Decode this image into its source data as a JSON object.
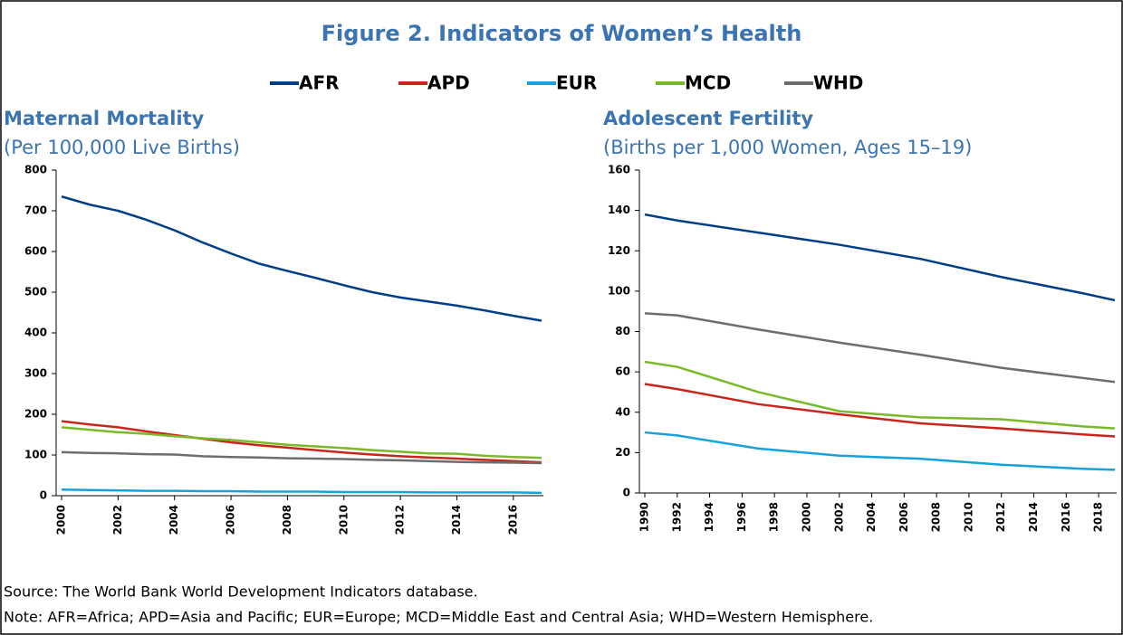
{
  "title": "Figure 2. Indicators of Women’s Health",
  "chart_data": [
    {
      "type": "line",
      "title": "Maternal Mortality",
      "subtitle": "(Per 100,000 Live Births)",
      "x": [
        2000,
        2001,
        2002,
        2003,
        2004,
        2005,
        2006,
        2007,
        2008,
        2009,
        2010,
        2011,
        2012,
        2013,
        2014,
        2015,
        2016,
        2017
      ],
      "xlim": [
        2000,
        2017
      ],
      "xticks": [
        2000,
        2002,
        2004,
        2006,
        2008,
        2010,
        2012,
        2014,
        2016
      ],
      "ylim": [
        0,
        800
      ],
      "yticks": [
        0,
        100,
        200,
        300,
        400,
        500,
        600,
        700,
        800
      ],
      "series": [
        {
          "name": "AFR",
          "color": "#003f87",
          "values": [
            735,
            715,
            700,
            678,
            652,
            622,
            595,
            570,
            552,
            535,
            517,
            500,
            487,
            477,
            467,
            455,
            442,
            430
          ]
        },
        {
          "name": "APD",
          "color": "#c8261c",
          "values": [
            183,
            175,
            168,
            158,
            149,
            140,
            131,
            124,
            118,
            112,
            106,
            101,
            97,
            94,
            91,
            88,
            85,
            82
          ]
        },
        {
          "name": "EUR",
          "color": "#17a2dc",
          "values": [
            15,
            14,
            13,
            12,
            12,
            11,
            11,
            10,
            10,
            10,
            9,
            9,
            9,
            8,
            8,
            8,
            8,
            7
          ]
        },
        {
          "name": "MCD",
          "color": "#7ab929",
          "values": [
            168,
            162,
            156,
            152,
            146,
            141,
            137,
            131,
            125,
            121,
            117,
            112,
            108,
            104,
            103,
            98,
            95,
            93
          ]
        },
        {
          "name": "WHD",
          "color": "#6d6d6d",
          "values": [
            107,
            105,
            104,
            102,
            101,
            97,
            95,
            94,
            92,
            91,
            90,
            88,
            87,
            85,
            83,
            82,
            81,
            80
          ]
        }
      ]
    },
    {
      "type": "line",
      "title": "Adolescent Fertility",
      "subtitle": "(Births per 1,000 Women, Ages 15–19)",
      "x": [
        1990,
        1992,
        1997,
        2002,
        2007,
        2012,
        2017,
        2019
      ],
      "xlim": [
        1990,
        2019
      ],
      "xticks": [
        1990,
        1992,
        1994,
        1996,
        1998,
        2000,
        2002,
        2004,
        2006,
        2008,
        2010,
        2012,
        2014,
        2016,
        2018
      ],
      "ylim": [
        0,
        160
      ],
      "yticks": [
        0,
        20,
        40,
        60,
        80,
        100,
        120,
        140,
        160
      ],
      "series": [
        {
          "name": "AFR",
          "values": [
            138,
            135,
            129,
            123,
            116,
            107,
            99,
            95.5
          ]
        },
        {
          "name": "APD",
          "values": [
            54,
            51.5,
            44,
            39,
            34.5,
            32,
            29,
            28
          ]
        },
        {
          "name": "EUR",
          "values": [
            30,
            28.5,
            22,
            18.5,
            17,
            14,
            12,
            11.5
          ]
        },
        {
          "name": "MCD",
          "values": [
            65,
            62.5,
            50,
            40.5,
            37.5,
            36.5,
            33,
            32
          ]
        },
        {
          "name": "WHD",
          "values": [
            89,
            88,
            81,
            74.5,
            68.5,
            62,
            57,
            55
          ]
        }
      ]
    }
  ],
  "source": "Source: The World Bank World Development Indicators database.",
  "note": "Note: AFR=Africa; APD=Asia and Pacific; EUR=Europe; MCD=Middle East and Central Asia; WHD=Western Hemisphere."
}
